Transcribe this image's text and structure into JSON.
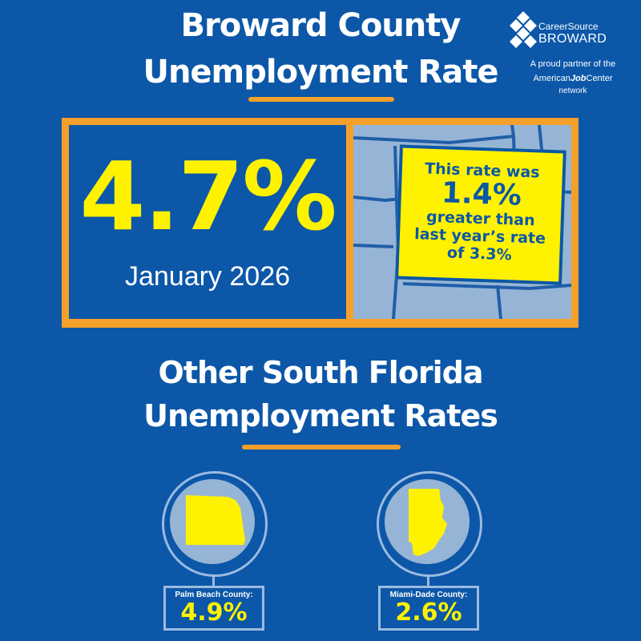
{
  "header": {
    "title_line1": "Broward County",
    "title_line2": "Unemployment Rate"
  },
  "logo": {
    "brand_line1": "CareerSource",
    "brand_line2": "BROWARD",
    "partner_text": "A proud partner of the",
    "ajc_prefix": "American",
    "ajc_bold": "Job",
    "ajc_suffix": "Center",
    "network": "network"
  },
  "main": {
    "rate": "4.7%",
    "period": "January 2026",
    "note_line1": "This rate was",
    "note_value": "1.4%",
    "note_line3": "greater than",
    "note_line4": "last year’s rate",
    "note_line5": "of 3.3%"
  },
  "section2": {
    "title_line1": "Other South Florida",
    "title_line2": "Unemployment Rates"
  },
  "counties": [
    {
      "name": "Palm Beach County:",
      "rate": "4.9%"
    },
    {
      "name": "Miami-Dade County:",
      "rate": "2.6%"
    }
  ],
  "colors": {
    "background": "#0c57a8",
    "accent_orange": "#f5a02b",
    "highlight_yellow": "#fff200",
    "light_blue": "#96b5d6"
  }
}
